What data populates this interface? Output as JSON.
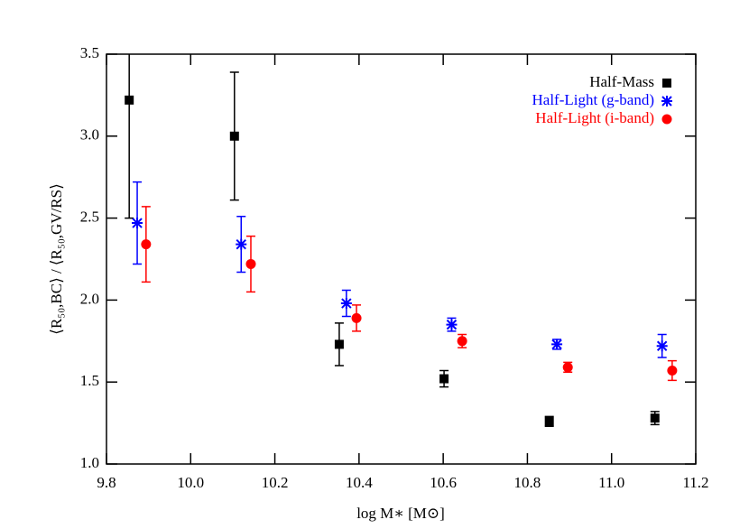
{
  "chart_data": {
    "type": "scatter",
    "xlabel": "log M∗ [M⊙]",
    "ylabel": "⟨R₅₀,BC⟩ / ⟨R₅₀,GV/RS⟩",
    "xlim": [
      9.8,
      11.2
    ],
    "xticks": [
      9.8,
      {
        "value": 10,
        "label": "10.0"
      },
      10.2,
      10.4,
      10.6,
      10.8,
      {
        "value": 11,
        "label": "11.0"
      },
      11.2
    ],
    "ylim": [
      1,
      3.5
    ],
    "yticks": [
      {
        "value": 1,
        "label": "1.0"
      },
      1.5,
      {
        "value": 2,
        "label": "2.0"
      },
      2.5,
      {
        "value": 3,
        "label": "3.0"
      },
      3.5
    ],
    "legend": "upper right",
    "series": [
      {
        "name": "Half-Mass",
        "color": "#000000",
        "marker": "square",
        "x": [
          9.854,
          10.104,
          10.353,
          10.602,
          10.852,
          11.103
        ],
        "values": [
          3.22,
          3.0,
          1.73,
          1.52,
          1.26,
          1.28
        ],
        "errors": [
          0.72,
          0.39,
          0.13,
          0.05,
          0.03,
          0.04
        ]
      },
      {
        "name": "Half-Light (g-band)",
        "color": "#0000ff",
        "marker": "asterisk",
        "x": [
          9.873,
          10.12,
          10.37,
          10.62,
          10.87,
          11.12
        ],
        "values": [
          2.47,
          2.34,
          1.98,
          1.85,
          1.73,
          1.72
        ],
        "errors": [
          0.25,
          0.17,
          0.08,
          0.04,
          0.03,
          0.07
        ]
      },
      {
        "name": "Half-Light (i-band)",
        "color": "#ff0000",
        "marker": "circle",
        "x": [
          9.894,
          10.143,
          10.394,
          10.645,
          10.896,
          11.144
        ],
        "values": [
          2.34,
          2.22,
          1.89,
          1.75,
          1.59,
          1.57
        ],
        "errors": [
          0.23,
          0.17,
          0.08,
          0.04,
          0.03,
          0.06
        ]
      }
    ]
  }
}
